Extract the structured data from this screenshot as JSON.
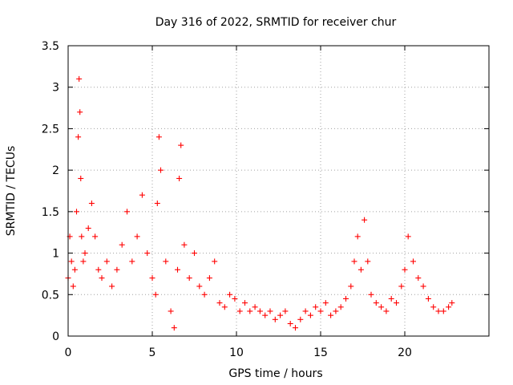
{
  "chart_data": {
    "type": "scatter",
    "title": "Day 316 of 2022, SRMTID for receiver chur",
    "xlabel": "GPS time / hours",
    "ylabel": "SRMTID / TECUs",
    "xlim": [
      0,
      25
    ],
    "ylim": [
      0,
      3.5
    ],
    "xticks": [
      0,
      5,
      10,
      15,
      20
    ],
    "xtick_labels": [
      "0",
      "5",
      "10",
      "15",
      "20"
    ],
    "yticks": [
      0,
      0.5,
      1,
      1.5,
      2,
      2.5,
      3,
      3.5
    ],
    "ytick_labels": [
      "0",
      "0.5",
      "1",
      "1.5",
      "2",
      "2.5",
      "3",
      "3.5"
    ],
    "grid": true,
    "marker": "+",
    "color": "#ff0000",
    "series": [
      {
        "name": "SRMTID",
        "x": [
          0.0,
          0.1,
          0.2,
          0.3,
          0.4,
          0.5,
          0.6,
          0.65,
          0.7,
          0.75,
          0.8,
          0.9,
          1.0,
          1.2,
          1.4,
          1.6,
          1.8,
          2.0,
          2.3,
          2.6,
          2.9,
          3.2,
          3.5,
          3.8,
          4.1,
          4.4,
          4.7,
          5.0,
          5.2,
          5.3,
          5.4,
          5.5,
          5.8,
          6.1,
          6.3,
          6.5,
          6.6,
          6.7,
          6.9,
          7.2,
          7.5,
          7.8,
          8.1,
          8.4,
          8.7,
          9.0,
          9.3,
          9.6,
          9.9,
          10.2,
          10.5,
          10.8,
          11.1,
          11.4,
          11.7,
          12.0,
          12.3,
          12.6,
          12.9,
          13.2,
          13.5,
          13.8,
          14.1,
          14.4,
          14.7,
          15.0,
          15.3,
          15.6,
          15.9,
          16.2,
          16.5,
          16.8,
          17.0,
          17.2,
          17.4,
          17.6,
          17.8,
          18.0,
          18.3,
          18.6,
          18.9,
          19.2,
          19.5,
          19.8,
          20.0,
          20.2,
          20.5,
          20.8,
          21.1,
          21.4,
          21.7,
          22.0,
          22.3,
          22.6,
          22.8
        ],
        "y": [
          0.7,
          1.2,
          0.9,
          0.6,
          0.8,
          1.5,
          2.4,
          3.1,
          2.7,
          1.9,
          1.2,
          0.9,
          1.0,
          1.3,
          1.6,
          1.2,
          0.8,
          0.7,
          0.9,
          0.6,
          0.8,
          1.1,
          1.5,
          0.9,
          1.2,
          1.7,
          1.0,
          0.7,
          0.5,
          1.6,
          2.4,
          2.0,
          0.9,
          0.3,
          0.1,
          0.8,
          1.9,
          2.3,
          1.1,
          0.7,
          1.0,
          0.6,
          0.5,
          0.7,
          0.9,
          0.4,
          0.35,
          0.5,
          0.45,
          0.3,
          0.4,
          0.3,
          0.35,
          0.3,
          0.25,
          0.3,
          0.2,
          0.25,
          0.3,
          0.15,
          0.1,
          0.2,
          0.3,
          0.25,
          0.35,
          0.3,
          0.4,
          0.25,
          0.3,
          0.35,
          0.45,
          0.6,
          0.9,
          1.2,
          0.8,
          1.4,
          0.9,
          0.5,
          0.4,
          0.35,
          0.3,
          0.45,
          0.4,
          0.6,
          0.8,
          1.2,
          0.9,
          0.7,
          0.6,
          0.45,
          0.35,
          0.3,
          0.3,
          0.35,
          0.4
        ]
      }
    ]
  }
}
